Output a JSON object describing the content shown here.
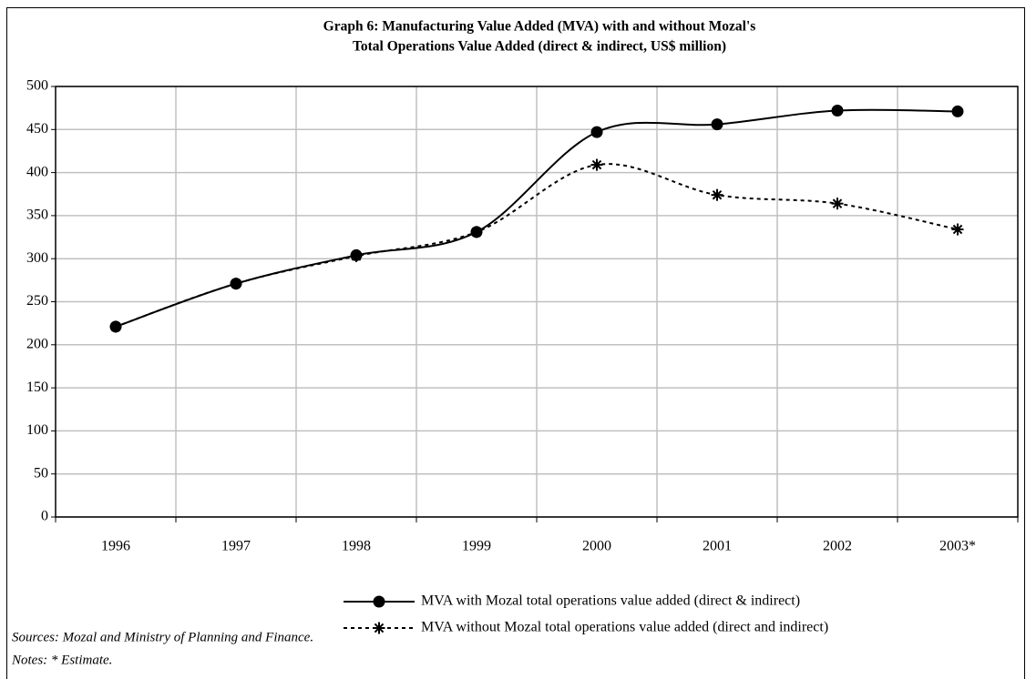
{
  "chart_data": {
    "type": "line",
    "title": [
      "Graph 6: Manufacturing Value Added (MVA) with and without Mozal's",
      "Total Operations Value Added (direct & indirect, US$ million)"
    ],
    "categories": [
      "1996",
      "1997",
      "1998",
      "1999",
      "2000",
      "2001",
      "2002",
      "2003*"
    ],
    "series": [
      {
        "name": "MVA with Mozal total operations value added (direct & indirect)",
        "color": "#000000",
        "marker": "circle",
        "dash": false,
        "values": [
          221,
          271,
          304,
          331,
          447,
          456,
          472,
          471
        ]
      },
      {
        "name": "MVA without Mozal total operations value added (direct and indirect)",
        "color": "#000000",
        "marker": "asterisk",
        "dash": true,
        "values": [
          221,
          271,
          303,
          331,
          409,
          374,
          364,
          334
        ]
      }
    ],
    "ylim": [
      0,
      500
    ],
    "yticks": [
      0,
      50,
      100,
      150,
      200,
      250,
      300,
      350,
      400,
      450,
      500
    ],
    "grid": true,
    "smooth": true,
    "source": "Sources: Mozal and Ministry of Planning and Finance.",
    "notes": "Notes: * Estimate."
  }
}
